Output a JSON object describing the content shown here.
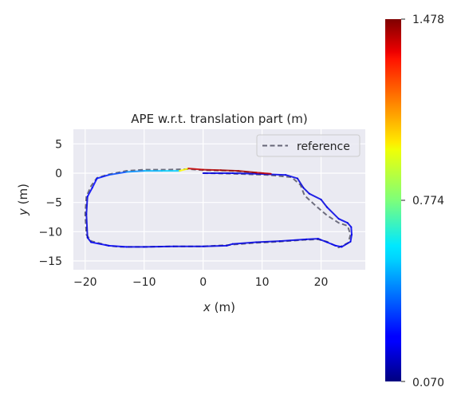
{
  "chart_data": {
    "type": "line",
    "title": "APE w.r.t. translation part (m)",
    "xlabel_var": "x",
    "xlabel_unit": " (m)",
    "ylabel_var": "y",
    "ylabel_unit": " (m)",
    "xlim": [
      -22,
      27.5
    ],
    "ylim": [
      -16.5,
      7.5
    ],
    "xticks": [
      -20,
      -10,
      0,
      10,
      20
    ],
    "xtick_labels": [
      "−20",
      "−10",
      "0",
      "10",
      "20"
    ],
    "yticks": [
      5,
      0,
      -5,
      -10,
      -15
    ],
    "ytick_labels": [
      "5",
      "0",
      "−5",
      "−10",
      "−15"
    ],
    "grid": true,
    "legend": {
      "placement": "top-right",
      "entries": [
        "reference"
      ]
    },
    "reference": {
      "name": "reference",
      "style": "dashed",
      "color": "#666677",
      "points": [
        [
          0,
          0
        ],
        [
          5,
          -0.1
        ],
        [
          11,
          -0.3
        ],
        [
          15,
          -0.7
        ],
        [
          16.5,
          -2
        ],
        [
          17.2,
          -3.8
        ],
        [
          19,
          -5.5
        ],
        [
          21,
          -7.2
        ],
        [
          23,
          -8.5
        ],
        [
          24.5,
          -9
        ],
        [
          25,
          -10.5
        ],
        [
          24.6,
          -11.9
        ],
        [
          23,
          -12.7
        ],
        [
          21,
          -11.7
        ],
        [
          19.5,
          -11.3
        ],
        [
          17,
          -11.4
        ],
        [
          13,
          -11.7
        ],
        [
          9,
          -11.9
        ],
        [
          5,
          -12.2
        ],
        [
          4,
          -12.3
        ],
        [
          0,
          -12.5
        ],
        [
          -5,
          -12.5
        ],
        [
          -10,
          -12.6
        ],
        [
          -14,
          -12.6
        ],
        [
          -16,
          -12.4
        ],
        [
          -19,
          -11.6
        ],
        [
          -19.8,
          -10.5
        ],
        [
          -20,
          -7
        ],
        [
          -19.8,
          -4
        ],
        [
          -19,
          -2.2
        ],
        [
          -18,
          -0.8
        ],
        [
          -16,
          -0.2
        ],
        [
          -13,
          0.4
        ],
        [
          -10,
          0.6
        ],
        [
          -6,
          0.6
        ],
        [
          -2.5,
          0.7
        ],
        [
          0,
          0.5
        ],
        [
          5,
          0.4
        ],
        [
          10,
          0
        ],
        [
          12,
          -0.2
        ]
      ]
    },
    "estimate": {
      "points": [
        [
          0,
          0
        ],
        [
          5,
          0
        ],
        [
          9,
          -0.1
        ],
        [
          14,
          -0.3
        ],
        [
          16,
          -0.9
        ],
        [
          17,
          -2.5
        ],
        [
          18,
          -3.5
        ],
        [
          20,
          -4.5
        ],
        [
          21,
          -5.8
        ],
        [
          23,
          -7.8
        ],
        [
          24.5,
          -8.5
        ],
        [
          25.1,
          -9.2
        ],
        [
          25.2,
          -10.5
        ],
        [
          25,
          -11.7
        ],
        [
          23.5,
          -12.6
        ],
        [
          22.5,
          -12.4
        ],
        [
          21,
          -11.8
        ],
        [
          19.5,
          -11.2
        ],
        [
          17.5,
          -11.3
        ],
        [
          13,
          -11.6
        ],
        [
          9,
          -11.8
        ],
        [
          5,
          -12.1
        ],
        [
          4,
          -12.4
        ],
        [
          0,
          -12.5
        ],
        [
          -5,
          -12.5
        ],
        [
          -10,
          -12.6
        ],
        [
          -13,
          -12.6
        ],
        [
          -16,
          -12.4
        ],
        [
          -19,
          -11.8
        ],
        [
          -19.6,
          -11
        ],
        [
          -19.8,
          -7
        ],
        [
          -19.6,
          -4
        ],
        [
          -18.8,
          -2.5
        ],
        [
          -18,
          -0.9
        ],
        [
          -16,
          -0.3
        ],
        [
          -13,
          0.2
        ],
        [
          -10,
          0.4
        ],
        [
          -7,
          0.4
        ],
        [
          -4,
          0.4
        ],
        [
          -2.5,
          0.8
        ],
        [
          0,
          0.6
        ],
        [
          3,
          0.5
        ],
        [
          6,
          0.4
        ],
        [
          9,
          0.1
        ],
        [
          11.5,
          -0.1
        ]
      ],
      "errors": [
        0.2,
        0.22,
        0.2,
        0.22,
        0.2,
        0.18,
        0.22,
        0.2,
        0.2,
        0.22,
        0.22,
        0.2,
        0.25,
        0.2,
        0.22,
        0.25,
        0.22,
        0.2,
        0.22,
        0.2,
        0.2,
        0.22,
        0.22,
        0.2,
        0.22,
        0.2,
        0.22,
        0.25,
        0.22,
        0.2,
        0.18,
        0.22,
        0.25,
        0.25,
        0.3,
        0.4,
        0.48,
        0.52,
        0.55,
        1.35,
        1.4,
        1.42,
        1.45,
        1.4,
        1.35
      ]
    },
    "colorbar": {
      "min": 0.07,
      "max": 1.478,
      "mid": 0.774,
      "colormap": "jet",
      "tick_labels": [
        "1.478",
        "0.774",
        "0.070"
      ]
    },
    "colors": {
      "axes_bg": "#eaeaf2",
      "grid": "#ffffff",
      "text": "#262626"
    }
  }
}
